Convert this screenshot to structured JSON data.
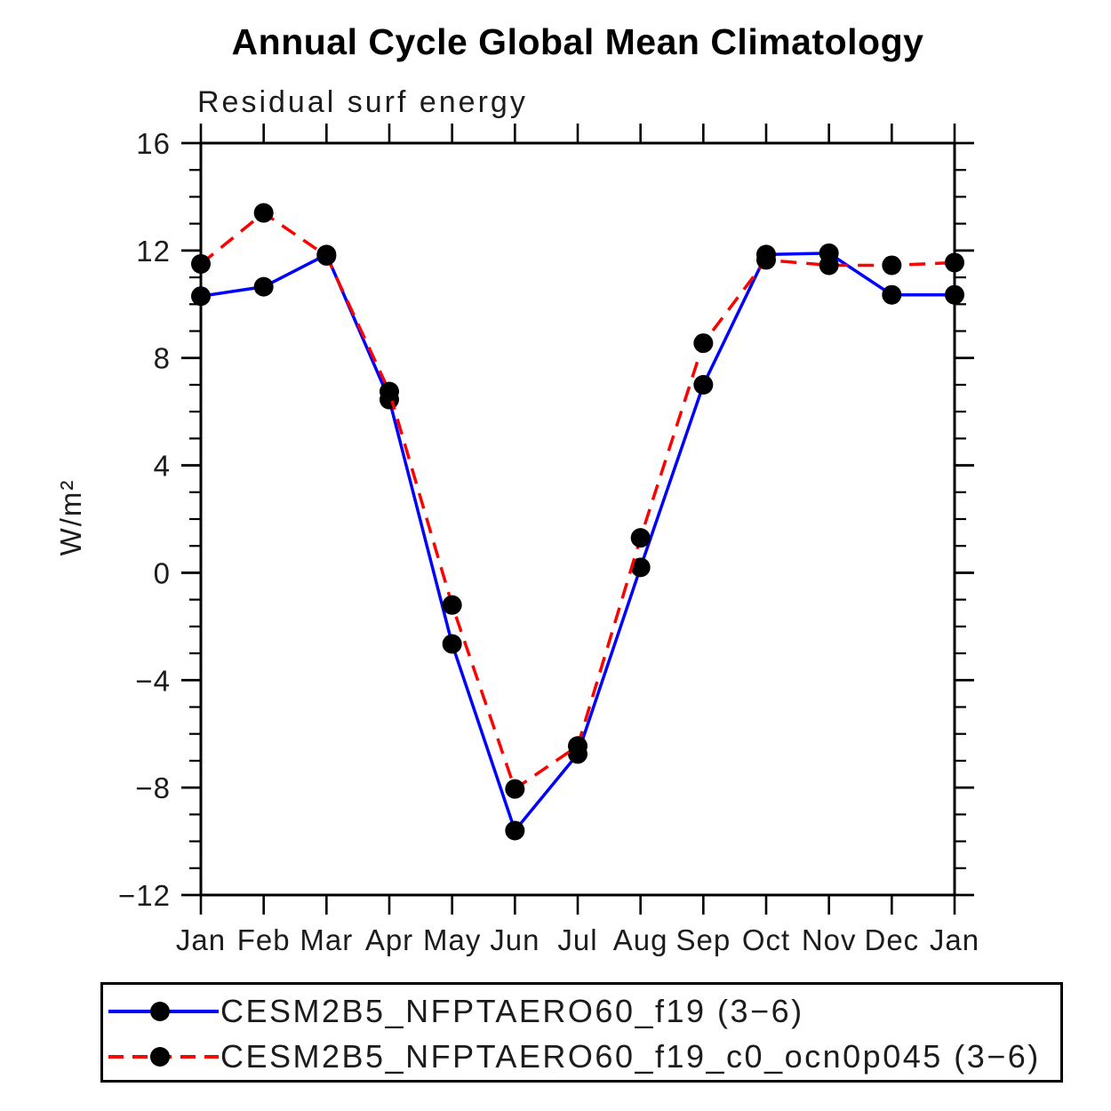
{
  "title": "Annual Cycle Global Mean Climatology",
  "subtitle": "Residual surf energy",
  "ylabel": "W/m²",
  "colors": {
    "axis": "#000000",
    "background": "#ffffff",
    "series_blue": "#0000ff",
    "series_red": "#ff0000",
    "marker": "#000000"
  },
  "chart_data": {
    "type": "line",
    "title": "Annual Cycle Global Mean Climatology",
    "subtitle": "Residual surf energy",
    "xlabel": "",
    "ylabel": "W/m²",
    "categories": [
      "Jan",
      "Feb",
      "Mar",
      "Apr",
      "May",
      "Jun",
      "Jul",
      "Aug",
      "Sep",
      "Oct",
      "Nov",
      "Dec",
      "Jan"
    ],
    "ylim": [
      -12,
      16
    ],
    "ytick_major": [
      16,
      12,
      8,
      4,
      0,
      -4,
      -8,
      -12
    ],
    "ytick_labels": [
      "16",
      "12",
      "8",
      "4",
      "0",
      "−4",
      "−8",
      "−12"
    ],
    "ytick_minor_step": 1,
    "grid": false,
    "legend_position": "bottom",
    "series": [
      {
        "name": "CESM2B5_NFPTAERO60_f19 (3−6)",
        "color": "#0000ff",
        "style": "solid",
        "marker": "circle",
        "marker_color": "#000000",
        "values": [
          10.3,
          10.65,
          11.85,
          6.45,
          -2.65,
          -9.6,
          -6.75,
          0.2,
          7.0,
          11.85,
          11.9,
          10.35,
          10.35
        ]
      },
      {
        "name": "CESM2B5_NFPTAERO60_f19_c0_ocn0p045 (3−6)",
        "color": "#ff0000",
        "style": "dashed",
        "marker": "circle",
        "marker_color": "#000000",
        "values": [
          11.5,
          13.4,
          11.8,
          6.75,
          -1.2,
          -8.05,
          -6.45,
          1.3,
          8.55,
          11.65,
          11.45,
          11.45,
          11.55
        ]
      }
    ]
  }
}
